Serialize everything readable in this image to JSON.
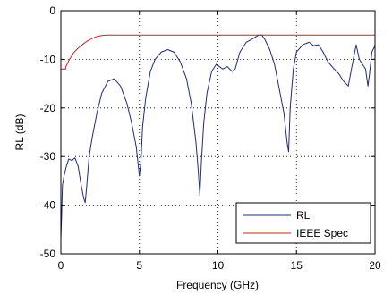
{
  "chart_data": {
    "type": "line",
    "xlabel": "Frequency (GHz)",
    "ylabel": "RL (dB)",
    "xlim": [
      0,
      20
    ],
    "ylim": [
      -50,
      0
    ],
    "x_ticks": [
      0,
      5,
      10,
      15,
      20
    ],
    "x_tick_labels": [
      "0",
      "5",
      "10",
      "15",
      "20"
    ],
    "y_ticks": [
      0,
      -10,
      -20,
      -30,
      -40,
      -50
    ],
    "y_tick_labels": [
      "0",
      "-10",
      "-20",
      "-30",
      "-40",
      "-50"
    ],
    "grid": "dotted",
    "legend_position": "bottom-right",
    "series": [
      {
        "name": "RL",
        "color": "#1f2a7a",
        "x": [
          0.0,
          0.05,
          0.1,
          0.2,
          0.35,
          0.5,
          0.7,
          0.9,
          1.1,
          1.3,
          1.45,
          1.55,
          1.65,
          1.8,
          2.0,
          2.3,
          2.6,
          3.0,
          3.4,
          3.8,
          4.2,
          4.5,
          4.8,
          5.0,
          5.1,
          5.2,
          5.4,
          5.7,
          6.0,
          6.4,
          6.8,
          7.2,
          7.6,
          8.0,
          8.3,
          8.6,
          8.75,
          8.85,
          8.95,
          9.1,
          9.3,
          9.6,
          9.9,
          10.1,
          10.3,
          10.6,
          10.9,
          11.1,
          11.4,
          11.8,
          12.2,
          12.6,
          12.8,
          13.0,
          13.3,
          13.6,
          13.9,
          14.2,
          14.4,
          14.5,
          14.6,
          14.8,
          15.0,
          15.4,
          15.8,
          16.1,
          16.4,
          16.7,
          17.0,
          17.4,
          17.7,
          18.0,
          18.3,
          18.5,
          18.8,
          19.0,
          19.2,
          19.4,
          19.55,
          19.65,
          19.8,
          20.0
        ],
        "values": [
          -47.0,
          -42.0,
          -36.0,
          -34.0,
          -32.0,
          -30.5,
          -30.8,
          -30.3,
          -32.0,
          -36.0,
          -38.5,
          -39.5,
          -36.0,
          -30.0,
          -26.0,
          -21.0,
          -17.0,
          -14.5,
          -14.0,
          -15.5,
          -19.0,
          -23.0,
          -28.0,
          -34.0,
          -31.0,
          -24.0,
          -18.0,
          -12.5,
          -10.0,
          -8.5,
          -8.0,
          -8.5,
          -10.5,
          -14.0,
          -19.0,
          -27.0,
          -33.0,
          -38.0,
          -31.0,
          -23.0,
          -17.0,
          -12.5,
          -11.0,
          -11.5,
          -12.0,
          -11.5,
          -12.5,
          -12.0,
          -8.5,
          -6.5,
          -5.8,
          -5.0,
          -5.0,
          -6.0,
          -8.0,
          -11.0,
          -16.0,
          -21.0,
          -27.0,
          -29.0,
          -20.0,
          -12.0,
          -8.5,
          -7.0,
          -6.5,
          -7.2,
          -7.0,
          -8.5,
          -10.5,
          -12.0,
          -13.0,
          -14.5,
          -15.5,
          -12.0,
          -7.0,
          -10.0,
          -11.0,
          -12.0,
          -15.5,
          -13.0,
          -8.5,
          -7.2
        ]
      },
      {
        "name": "IEEE Spec",
        "color": "#cc2020",
        "x": [
          0.0,
          0.3,
          0.31,
          0.5,
          0.8,
          1.1,
          1.4,
          1.7,
          2.0,
          2.3,
          2.6,
          2.9,
          3.1,
          3.2,
          20.0
        ],
        "values": [
          -12.0,
          -12.0,
          -11.6,
          -10.3,
          -8.7,
          -7.7,
          -6.9,
          -6.2,
          -5.7,
          -5.3,
          -5.1,
          -5.0,
          -5.0,
          -5.0,
          -5.0
        ]
      }
    ]
  }
}
